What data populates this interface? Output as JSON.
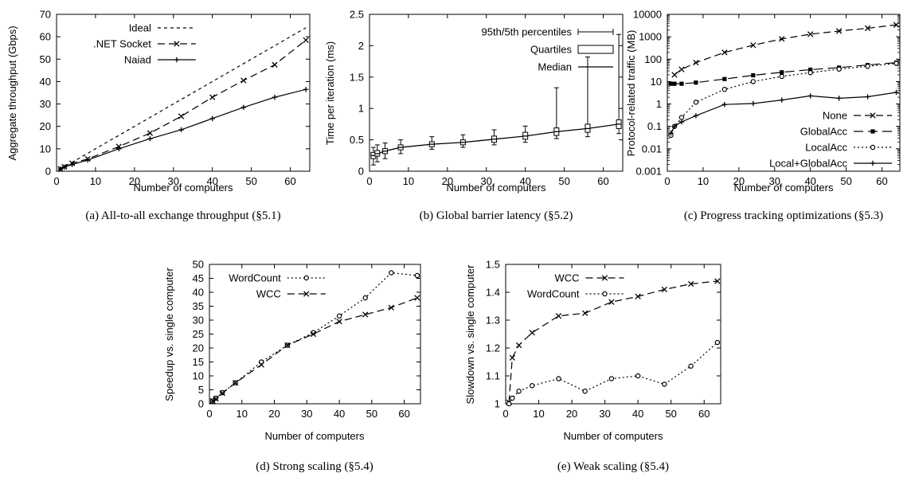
{
  "chart_data": [
    {
      "type": "line",
      "caption": "(a) All-to-all exchange throughput (§5.1)",
      "xlabel": "Number of computers",
      "ylabel": "Aggregate throughput (Gbps)",
      "xlim": [
        0,
        65
      ],
      "ylim": [
        0,
        70
      ],
      "xticks": [
        0,
        10,
        20,
        30,
        40,
        50,
        60
      ],
      "yticks": [
        0,
        10,
        20,
        30,
        40,
        50,
        60,
        70
      ],
      "legend_position": "top-left",
      "series": [
        {
          "name": "Ideal",
          "style": "dashed-fine",
          "x": [
            1,
            64
          ],
          "y": [
            1,
            64
          ]
        },
        {
          "name": ".NET Socket",
          "style": "dashed",
          "marker": "x",
          "x": [
            1,
            2,
            4,
            8,
            16,
            24,
            32,
            40,
            48,
            56,
            64
          ],
          "y": [
            1,
            2,
            3.5,
            5.5,
            11,
            17,
            24.5,
            33,
            40.5,
            47.5,
            58.5
          ]
        },
        {
          "name": "Naiad",
          "style": "solid",
          "marker": "+",
          "x": [
            1,
            2,
            4,
            8,
            16,
            24,
            32,
            40,
            48,
            56,
            64
          ],
          "y": [
            1,
            1.8,
            3,
            5,
            10,
            14.5,
            18.5,
            23.5,
            28.5,
            33,
            36.5
          ]
        }
      ]
    },
    {
      "type": "line",
      "caption": "(b) Global barrier latency (§5.2)",
      "xlabel": "Number of computers",
      "ylabel": "Time per iteration (ms)",
      "xlim": [
        0,
        65
      ],
      "ylim": [
        0,
        2.5
      ],
      "xticks": [
        0,
        10,
        20,
        30,
        40,
        50,
        60
      ],
      "yticks": [
        0,
        0.5,
        1,
        1.5,
        2,
        2.5
      ],
      "legend_position": "top-left",
      "legend": [
        "95th/5th percentiles",
        "Quartiles",
        "Median"
      ],
      "x": [
        1,
        2,
        4,
        8,
        16,
        24,
        32,
        40,
        48,
        56,
        64
      ],
      "median": [
        0.25,
        0.28,
        0.32,
        0.38,
        0.43,
        0.46,
        0.51,
        0.56,
        0.63,
        0.68,
        0.75
      ],
      "q1": [
        0.2,
        0.24,
        0.28,
        0.34,
        0.39,
        0.42,
        0.46,
        0.51,
        0.57,
        0.62,
        0.68
      ],
      "q3": [
        0.3,
        0.33,
        0.36,
        0.42,
        0.47,
        0.5,
        0.56,
        0.62,
        0.69,
        0.75,
        0.82
      ],
      "p5": [
        0.1,
        0.15,
        0.2,
        0.28,
        0.35,
        0.38,
        0.42,
        0.46,
        0.52,
        0.55,
        0.6
      ],
      "p95": [
        0.38,
        0.42,
        0.45,
        0.5,
        0.55,
        0.58,
        0.66,
        0.72,
        1.33,
        1.82,
        2.18
      ]
    },
    {
      "type": "line",
      "caption": "(c) Progress tracking optimizations (§5.3)",
      "xlabel": "Number of computers",
      "ylabel": "Protocol-related traffic (MB)",
      "yscale": "log",
      "xlim": [
        0,
        65
      ],
      "ylim": [
        0.001,
        10000
      ],
      "xticks": [
        0,
        10,
        20,
        30,
        40,
        50,
        60
      ],
      "yticks": [
        0.001,
        0.01,
        0.1,
        1,
        10,
        100,
        1000,
        10000
      ],
      "ytick_labels": [
        "0.001",
        "0.01",
        "0.1",
        "1",
        "10",
        "100",
        "1000",
        "10000"
      ],
      "legend_position": "bottom-right",
      "series": [
        {
          "name": "None",
          "style": "dashed",
          "marker": "x",
          "x": [
            2,
            4,
            8,
            16,
            24,
            32,
            40,
            48,
            56,
            64
          ],
          "y": [
            20,
            35,
            70,
            200,
            420,
            800,
            1300,
            1800,
            2400,
            3400
          ]
        },
        {
          "name": "GlobalAcc",
          "style": "dashed-long",
          "marker": "square",
          "x": [
            1,
            2,
            4,
            8,
            16,
            24,
            32,
            40,
            48,
            56,
            64
          ],
          "y": [
            8,
            8,
            8,
            9,
            13,
            19,
            26,
            34,
            42,
            55,
            70
          ]
        },
        {
          "name": "LocalAcc",
          "style": "dotted",
          "marker": "circle",
          "x": [
            1,
            2,
            4,
            8,
            16,
            24,
            32,
            40,
            48,
            56,
            64
          ],
          "y": [
            0.04,
            0.1,
            0.25,
            1.2,
            4.5,
            10,
            17,
            25,
            36,
            48,
            65
          ]
        },
        {
          "name": "Local+GlobalAcc",
          "style": "solid",
          "marker": "+",
          "x": [
            1,
            2,
            4,
            8,
            16,
            24,
            32,
            40,
            48,
            56,
            64
          ],
          "y": [
            0.05,
            0.1,
            0.16,
            0.3,
            0.95,
            1.05,
            1.5,
            2.3,
            1.8,
            2.1,
            3.3
          ]
        }
      ]
    },
    {
      "type": "line",
      "caption": "(d) Strong scaling (§5.4)",
      "xlabel": "Number of computers",
      "ylabel": "Speedup vs. single computer",
      "xlim": [
        0,
        65
      ],
      "ylim": [
        0,
        50
      ],
      "xticks": [
        0,
        10,
        20,
        30,
        40,
        50,
        60
      ],
      "yticks": [
        0,
        5,
        10,
        15,
        20,
        25,
        30,
        35,
        40,
        45,
        50
      ],
      "legend_position": "top-left",
      "series": [
        {
          "name": "WordCount",
          "style": "dotted",
          "marker": "circle",
          "x": [
            1,
            2,
            4,
            8,
            16,
            24,
            32,
            40,
            48,
            56,
            64
          ],
          "y": [
            1,
            2,
            4,
            7.5,
            15,
            21,
            25.5,
            31.5,
            38,
            47,
            46
          ]
        },
        {
          "name": "WCC",
          "style": "dashed",
          "marker": "x",
          "x": [
            1,
            2,
            4,
            8,
            16,
            24,
            32,
            40,
            48,
            56,
            64
          ],
          "y": [
            1,
            1.8,
            3.8,
            7.5,
            14,
            21,
            25,
            29.5,
            32,
            34.5,
            38
          ]
        }
      ]
    },
    {
      "type": "line",
      "caption": "(e) Weak scaling (§5.4)",
      "xlabel": "Number of computers",
      "ylabel": "Slowdown vs. single computer",
      "xlim": [
        0,
        65
      ],
      "ylim": [
        1,
        1.5
      ],
      "xticks": [
        0,
        10,
        20,
        30,
        40,
        50,
        60
      ],
      "yticks": [
        1,
        1.1,
        1.2,
        1.3,
        1.4,
        1.5
      ],
      "legend_position": "top-left",
      "series": [
        {
          "name": "WCC",
          "style": "dashed",
          "marker": "x",
          "x": [
            1,
            2,
            4,
            8,
            16,
            24,
            32,
            40,
            48,
            56,
            64
          ],
          "y": [
            1.005,
            1.165,
            1.21,
            1.255,
            1.315,
            1.325,
            1.365,
            1.385,
            1.41,
            1.43,
            1.44
          ]
        },
        {
          "name": "WordCount",
          "style": "dotted",
          "marker": "circle",
          "x": [
            1,
            2,
            4,
            8,
            16,
            24,
            32,
            40,
            48,
            56,
            64
          ],
          "y": [
            1.0,
            1.02,
            1.045,
            1.065,
            1.09,
            1.045,
            1.09,
            1.1,
            1.07,
            1.135,
            1.22
          ]
        }
      ]
    }
  ]
}
